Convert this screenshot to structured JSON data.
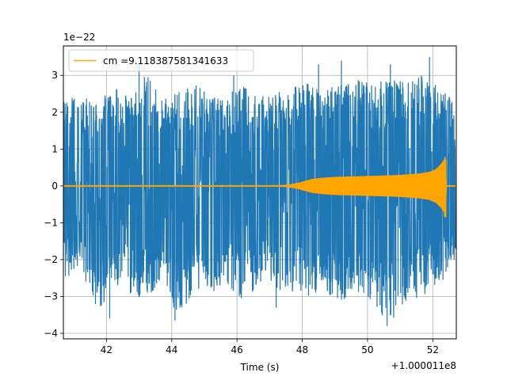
{
  "chart_data": {
    "type": "line",
    "title": "",
    "xlabel": "Time (s)",
    "ylabel": "",
    "x_offset_label": "+1.000011e8",
    "y_scale_label": "1e−22",
    "xlim": [
      40.68,
      52.72
    ],
    "ylim": [
      -4.15,
      3.8
    ],
    "x_ticks": [
      42,
      44,
      46,
      48,
      50,
      52
    ],
    "x_tick_labels": [
      "42",
      "44",
      "46",
      "48",
      "50",
      "52"
    ],
    "y_ticks": [
      -4,
      -3,
      -2,
      -1,
      0,
      1,
      2,
      3
    ],
    "y_tick_labels": [
      "−4",
      "−3",
      "−2",
      "−1",
      "0",
      "1",
      "2",
      "3"
    ],
    "grid": true,
    "legend": {
      "position": "upper-left",
      "entries": [
        "cm =9.118387581341633"
      ]
    },
    "colors": {
      "noise": "#1f77b4",
      "signal": "#ffa500",
      "grid": "#b0b0b0"
    },
    "series": [
      {
        "color": "#1f77b4",
        "x": [
          40.7,
          41.2,
          41.7,
          42.2,
          42.7,
          43.2,
          43.7,
          44.2,
          44.7,
          45.2,
          45.7,
          46.2,
          46.7,
          47.2,
          47.7,
          48.2,
          48.7,
          49.2,
          49.7,
          50.2,
          50.7,
          51.2,
          51.7,
          52.2,
          52.7
        ],
        "upper": [
          2.3,
          2.5,
          2.2,
          2.7,
          2.4,
          3.1,
          2.3,
          2.6,
          2.8,
          2.4,
          2.5,
          2.7,
          2.4,
          2.6,
          2.7,
          2.9,
          2.6,
          2.8,
          3.0,
          2.8,
          2.9,
          2.8,
          3.0,
          2.9,
          2.2
        ],
        "lower": [
          -2.5,
          -2.3,
          -3.6,
          -2.6,
          -2.9,
          -3.1,
          -2.7,
          -3.6,
          -2.8,
          -2.9,
          -2.7,
          -3.2,
          -2.6,
          -2.8,
          -2.9,
          -3.0,
          -2.9,
          -3.1,
          -3.0,
          -3.2,
          -3.8,
          -3.1,
          -3.0,
          -2.7,
          -2.0
        ],
        "peaks": [
          {
            "x": 42.1,
            "y": -3.6
          },
          {
            "x": 43.0,
            "y": 3.3
          },
          {
            "x": 44.1,
            "y": -3.65
          },
          {
            "x": 45.9,
            "y": 3.0
          },
          {
            "x": 47.2,
            "y": -3.3
          },
          {
            "x": 48.5,
            "y": 3.3
          },
          {
            "x": 50.6,
            "y": -3.8
          },
          {
            "x": 50.7,
            "y": 3.3
          },
          {
            "x": 51.9,
            "y": 3.5
          },
          {
            "x": 49.2,
            "y": 3.4
          }
        ]
      },
      {
        "name": "cm =9.118387581341633",
        "color": "#ffa500",
        "x": [
          40.7,
          47.2,
          47.6,
          47.9,
          48.1,
          48.3,
          48.6,
          48.9,
          49.2,
          49.6,
          50.0,
          50.4,
          50.8,
          51.2,
          51.6,
          51.9,
          52.1,
          52.25,
          52.35,
          52.38,
          52.42,
          52.72
        ],
        "amplitude": [
          0.0,
          0.0,
          0.03,
          0.08,
          0.13,
          0.18,
          0.21,
          0.23,
          0.24,
          0.25,
          0.26,
          0.27,
          0.28,
          0.3,
          0.33,
          0.37,
          0.45,
          0.58,
          0.7,
          0.8,
          0.0,
          0.0
        ]
      }
    ]
  }
}
